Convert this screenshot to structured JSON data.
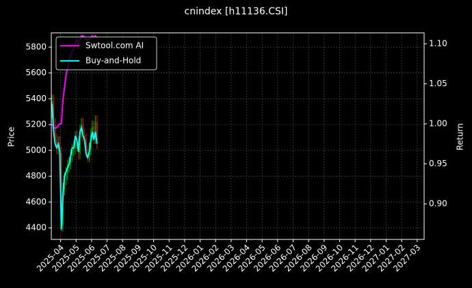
{
  "chart_data": {
    "type": "candlestick",
    "title": "cnindex [h11136.CSI]",
    "ylabel": "Price",
    "y2label": "Return",
    "x": [
      -0.55,
      -0.45,
      -0.35,
      -0.25,
      -0.15,
      -0.05,
      0.05,
      0.15,
      0.25,
      0.35,
      0.45,
      0.55,
      0.65,
      0.75,
      0.85,
      0.95,
      1.05,
      1.15,
      1.25,
      1.35,
      1.45,
      1.55,
      1.65,
      1.75,
      1.85,
      1.95,
      2.05,
      2.15,
      2.25,
      2.35
    ],
    "open": [
      5300,
      5380,
      5200,
      5080,
      5020,
      5060,
      4980,
      4420,
      4700,
      4780,
      4820,
      4880,
      4900,
      4960,
      5000,
      5020,
      5100,
      5060,
      4980,
      5150,
      5200,
      5120,
      5080,
      4990,
      4960,
      5010,
      5120,
      5180,
      5100,
      5220
    ],
    "high": [
      5430,
      5430,
      5250,
      5130,
      5110,
      5110,
      5030,
      4750,
      4830,
      4870,
      4930,
      4950,
      5010,
      5050,
      5070,
      5150,
      5150,
      5110,
      5200,
      5250,
      5250,
      5170,
      5130,
      5040,
      5060,
      5170,
      5230,
      5230,
      5270,
      5270
    ],
    "low": [
      5250,
      5150,
      5030,
      4970,
      4970,
      4930,
      4370,
      4370,
      4650,
      4730,
      4770,
      4830,
      4850,
      4910,
      4950,
      4970,
      5010,
      4930,
      4930,
      5100,
      5070,
      5030,
      4940,
      4910,
      4910,
      4960,
      5070,
      5050,
      5050,
      5010
    ],
    "close": [
      5380,
      5200,
      5080,
      5020,
      5060,
      4980,
      4420,
      4700,
      4780,
      4820,
      4880,
      4900,
      4960,
      5000,
      5020,
      5100,
      5060,
      4980,
      5150,
      5200,
      5120,
      5080,
      4990,
      4960,
      5010,
      5120,
      5180,
      5100,
      5220,
      5060
    ],
    "up_color": "#00b000",
    "down_color": "#d02000",
    "series": [
      {
        "name": "Swtool.com AI",
        "color": "#ff00ff",
        "axis": "y2",
        "values": [
          1.0,
          0.995,
          0.995,
          0.995,
          0.998,
          1.0,
          1.0,
          1.03,
          1.045,
          1.06,
          1.07,
          1.08,
          1.085,
          1.09,
          1.095,
          1.1,
          1.105,
          1.1,
          1.105,
          1.11,
          1.11,
          1.108,
          1.105,
          1.105,
          1.106,
          1.108,
          1.11,
          1.108,
          1.11,
          1.107
        ]
      },
      {
        "name": "Buy-and-Hold",
        "color": "#00ffff",
        "axis": "y2",
        "values": [
          1.025,
          0.99,
          0.975,
          0.97,
          0.975,
          0.965,
          0.868,
          0.91,
          0.935,
          0.94,
          0.945,
          0.95,
          0.96,
          0.97,
          0.97,
          0.985,
          0.98,
          0.965,
          0.99,
          0.995,
          0.985,
          0.98,
          0.962,
          0.958,
          0.965,
          0.98,
          0.99,
          0.98,
          0.99,
          0.975
        ]
      }
    ],
    "xlim": [
      -0.6,
      23.45
    ],
    "xticks": [
      {
        "value": 0,
        "label": "2025-04"
      },
      {
        "value": 1,
        "label": "2025-05"
      },
      {
        "value": 2,
        "label": "2025-06"
      },
      {
        "value": 3,
        "label": "2025-07"
      },
      {
        "value": 4,
        "label": "2025-08"
      },
      {
        "value": 5,
        "label": "2025-09"
      },
      {
        "value": 6,
        "label": "2025-10"
      },
      {
        "value": 7,
        "label": "2025-11"
      },
      {
        "value": 8,
        "label": "2025-12"
      },
      {
        "value": 9,
        "label": "2026-01"
      },
      {
        "value": 10,
        "label": "2026-02"
      },
      {
        "value": 11,
        "label": "2026-03"
      },
      {
        "value": 12,
        "label": "2026-04"
      },
      {
        "value": 13,
        "label": "2026-05"
      },
      {
        "value": 14,
        "label": "2026-06"
      },
      {
        "value": 15,
        "label": "2026-07"
      },
      {
        "value": 16,
        "label": "2026-08"
      },
      {
        "value": 17,
        "label": "2026-09"
      },
      {
        "value": 18,
        "label": "2026-10"
      },
      {
        "value": 19,
        "label": "2026-11"
      },
      {
        "value": 20,
        "label": "2026-12"
      },
      {
        "value": 21,
        "label": "2027-01"
      },
      {
        "value": 22,
        "label": "2027-02"
      },
      {
        "value": 23,
        "label": "2027-03"
      }
    ],
    "ylim": [
      4310,
      5911
    ],
    "yticks": [
      4400,
      4600,
      4800,
      5000,
      5200,
      5400,
      5600,
      5800
    ],
    "y2lim": [
      0.8556,
      1.1137
    ],
    "y2ticks": [
      {
        "value": 0.9,
        "label": "0.90"
      },
      {
        "value": 0.95,
        "label": "0.95"
      },
      {
        "value": 1.0,
        "label": "1.00"
      },
      {
        "value": 1.05,
        "label": "1.05"
      },
      {
        "value": 1.1,
        "label": "1.10"
      }
    ],
    "grid": true,
    "legend": "upper-left"
  }
}
